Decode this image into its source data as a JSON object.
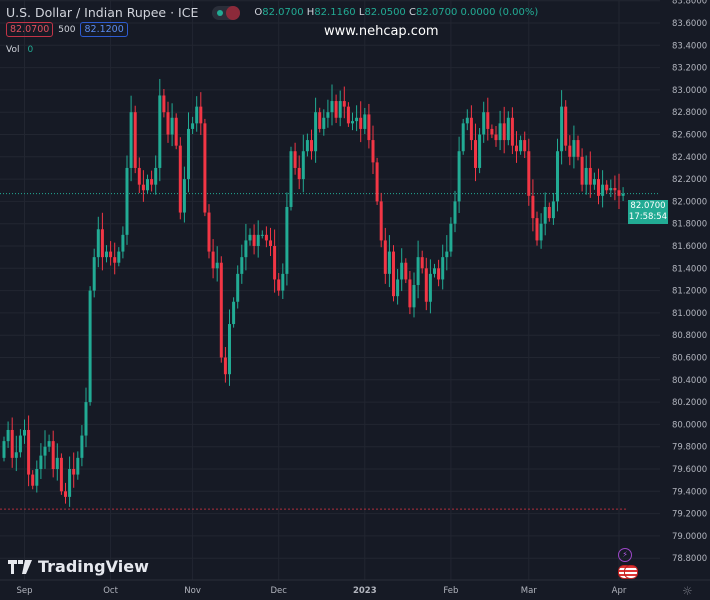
{
  "header": {
    "title": "U.S. Dollar / Indian Rupee · ICE",
    "o_label": "O",
    "o": "82.0700",
    "h_label": "H",
    "h": "82.1160",
    "l_label": "L",
    "l": "82.0500",
    "c_label": "C",
    "c": "82.0700",
    "change": "0.0000 (0.00%)",
    "bid": "82.0700",
    "spread": "500",
    "ask": "82.1200",
    "vol_label": "Vol",
    "vol_value": "0"
  },
  "watermark": "www.nehcap.com",
  "logo": "TradingView",
  "last_price": {
    "price": "82.0700",
    "countdown": "17:58:54"
  },
  "colors": {
    "up": "#22ab94",
    "down": "#f23645",
    "bg": "#161a25",
    "grid": "#222631"
  },
  "chart_data": {
    "type": "candlestick",
    "title": "U.S. Dollar / Indian Rupee · ICE",
    "interval": "daily",
    "ylim": [
      78.75,
      83.85
    ],
    "y_ticks": [
      "83.8000",
      "83.6000",
      "83.4000",
      "83.2000",
      "83.0000",
      "82.8000",
      "82.6000",
      "82.4000",
      "82.2000",
      "82.0000",
      "81.8000",
      "81.6000",
      "81.4000",
      "81.2000",
      "81.0000",
      "80.8000",
      "80.6000",
      "80.4000",
      "80.2000",
      "80.0000",
      "79.8000",
      "79.6000",
      "79.4000",
      "79.2000",
      "79.0000",
      "78.8000"
    ],
    "x_ticks": [
      {
        "label": "Sep",
        "index": 5
      },
      {
        "label": "Oct",
        "index": 26
      },
      {
        "label": "Nov",
        "index": 46
      },
      {
        "label": "Dec",
        "index": 67
      },
      {
        "label": "2023",
        "index": 88
      },
      {
        "label": "Feb",
        "index": 109
      },
      {
        "label": "Mar",
        "index": 128
      },
      {
        "label": "Apr",
        "index": 150
      }
    ],
    "reference_line": 79.24,
    "close": [
      79.85,
      79.95,
      79.7,
      79.75,
      79.9,
      79.95,
      79.55,
      79.45,
      79.6,
      79.72,
      79.8,
      79.85,
      79.6,
      79.7,
      79.4,
      79.35,
      79.6,
      79.55,
      79.7,
      79.9,
      80.2,
      81.2,
      81.5,
      81.75,
      81.5,
      81.55,
      81.5,
      81.45,
      81.55,
      81.7,
      82.3,
      82.8,
      82.3,
      82.15,
      82.1,
      82.2,
      82.15,
      82.3,
      82.95,
      82.8,
      82.6,
      82.75,
      82.5,
      81.9,
      82.2,
      82.65,
      82.7,
      82.85,
      82.7,
      81.9,
      81.55,
      81.4,
      81.45,
      80.6,
      80.45,
      80.9,
      81.1,
      81.35,
      81.5,
      81.65,
      81.7,
      81.6,
      81.7,
      81.7,
      81.65,
      81.6,
      81.3,
      81.2,
      81.35,
      81.95,
      82.45,
      82.3,
      82.2,
      82.45,
      82.55,
      82.45,
      82.8,
      82.65,
      82.75,
      82.8,
      82.9,
      82.75,
      82.9,
      82.85,
      82.7,
      82.72,
      82.75,
      82.65,
      82.78,
      82.55,
      82.35,
      82.0,
      81.65,
      81.35,
      81.55,
      81.15,
      81.3,
      81.45,
      81.3,
      81.05,
      81.25,
      81.5,
      81.4,
      81.1,
      81.35,
      81.4,
      81.3,
      81.5,
      81.55,
      81.8,
      82.0,
      82.45,
      82.7,
      82.75,
      82.55,
      82.3,
      82.6,
      82.8,
      82.65,
      82.6,
      82.55,
      82.7,
      82.55,
      82.75,
      82.5,
      82.45,
      82.55,
      82.45,
      82.05,
      81.85,
      81.65,
      81.8,
      81.95,
      81.85,
      82.0,
      82.45,
      82.85,
      82.5,
      82.4,
      82.55,
      82.4,
      82.15,
      82.3,
      82.15,
      82.2,
      82.05,
      82.15,
      82.1,
      82.12,
      82.1,
      82.05,
      82.07
    ],
    "open_first": 79.7
  }
}
